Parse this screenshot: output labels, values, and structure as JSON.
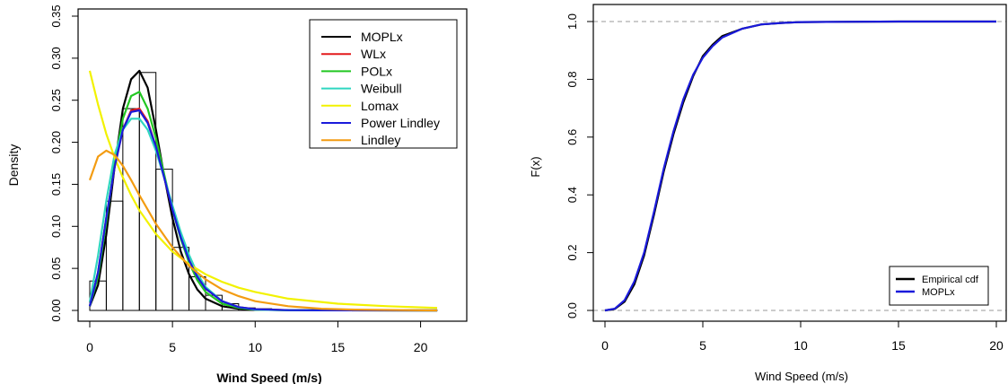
{
  "chart_data": [
    {
      "type": "histogram",
      "xlabel": "Wind Speed (m/s)",
      "ylabel": "Density",
      "xlim": [
        0,
        21
      ],
      "ylim": [
        0,
        0.35
      ],
      "x_ticks": [
        0,
        5,
        10,
        15,
        20
      ],
      "x_tick_labels": [
        "0",
        "5",
        "10",
        "15",
        "20"
      ],
      "y_ticks": [
        0,
        0.05,
        0.1,
        0.15,
        0.2,
        0.25,
        0.3,
        0.35
      ],
      "y_tick_labels": [
        "0.00",
        "0.05",
        "0.10",
        "0.15",
        "0.20",
        "0.25",
        "0.30",
        "0.35"
      ],
      "grid": false,
      "legend_position": "top-right",
      "histogram": {
        "bin_edges": [
          0,
          1,
          2,
          3,
          4,
          5,
          6,
          7,
          8,
          9,
          10,
          11,
          12,
          13,
          14,
          15,
          16,
          17,
          18,
          19,
          20,
          21
        ],
        "densities": [
          0.035,
          0.13,
          0.24,
          0.283,
          0.168,
          0.075,
          0.04,
          0.018,
          0.008,
          0.003,
          0.002,
          0.001,
          0.001,
          0.0005,
          0.0005,
          0.0003,
          0.0002,
          0.0001,
          0.0001,
          0.0001,
          0.0001
        ]
      },
      "series": [
        {
          "name": "MOPLx",
          "color": "#000000",
          "x": [
            0,
            0.5,
            1,
            1.5,
            2,
            2.5,
            3,
            3.5,
            4,
            4.5,
            5,
            5.5,
            6,
            6.5,
            7,
            8,
            9,
            10,
            12,
            15,
            21
          ],
          "y": [
            0.005,
            0.03,
            0.09,
            0.17,
            0.24,
            0.275,
            0.285,
            0.265,
            0.215,
            0.16,
            0.11,
            0.07,
            0.043,
            0.025,
            0.014,
            0.005,
            0.002,
            0.001,
            0.0003,
            0.0001,
            0
          ]
        },
        {
          "name": "WLx",
          "color": "#e31a1c",
          "x": [
            0,
            0.5,
            1,
            1.5,
            2,
            2.5,
            3,
            3.5,
            4,
            4.5,
            5,
            5.5,
            6,
            6.5,
            7,
            8,
            9,
            10,
            12,
            15,
            21
          ],
          "y": [
            0.005,
            0.045,
            0.11,
            0.17,
            0.215,
            0.238,
            0.24,
            0.225,
            0.195,
            0.158,
            0.12,
            0.087,
            0.06,
            0.04,
            0.026,
            0.011,
            0.004,
            0.0015,
            0.0003,
            0.0001,
            0
          ]
        },
        {
          "name": "POLx",
          "color": "#22c722",
          "x": [
            0,
            0.5,
            1,
            1.5,
            2,
            2.5,
            3,
            3.5,
            4,
            4.5,
            5,
            5.5,
            6,
            6.5,
            7,
            8,
            9,
            10,
            12,
            15,
            21
          ],
          "y": [
            0.005,
            0.04,
            0.105,
            0.175,
            0.228,
            0.255,
            0.26,
            0.24,
            0.205,
            0.162,
            0.12,
            0.085,
            0.057,
            0.036,
            0.022,
            0.008,
            0.003,
            0.001,
            0.0002,
            0.0001,
            0
          ]
        },
        {
          "name": "Weibull",
          "color": "#2fd6c0",
          "x": [
            0,
            0.5,
            1,
            1.5,
            2,
            2.5,
            3,
            3.5,
            4,
            4.5,
            5,
            5.5,
            6,
            6.5,
            7,
            8,
            9,
            10,
            12,
            15,
            21
          ],
          "y": [
            0.01,
            0.065,
            0.13,
            0.185,
            0.215,
            0.228,
            0.228,
            0.215,
            0.19,
            0.158,
            0.125,
            0.093,
            0.066,
            0.044,
            0.028,
            0.011,
            0.004,
            0.001,
            0.0002,
            0.0001,
            0
          ]
        },
        {
          "name": "Lomax",
          "color": "#f2f200",
          "x": [
            0,
            0.5,
            1,
            1.5,
            2,
            2.5,
            3,
            4,
            5,
            6,
            7,
            8,
            9,
            10,
            12,
            15,
            18,
            21
          ],
          "y": [
            0.285,
            0.245,
            0.21,
            0.182,
            0.158,
            0.137,
            0.119,
            0.091,
            0.07,
            0.055,
            0.043,
            0.034,
            0.027,
            0.022,
            0.014,
            0.008,
            0.005,
            0.003
          ]
        },
        {
          "name": "Power Lindley",
          "color": "#1a1adb",
          "x": [
            0,
            0.5,
            1,
            1.5,
            2,
            2.5,
            3,
            3.5,
            4,
            4.5,
            5,
            5.5,
            6,
            6.5,
            7,
            8,
            9,
            10,
            12,
            15,
            21
          ],
          "y": [
            0.005,
            0.045,
            0.11,
            0.17,
            0.215,
            0.236,
            0.238,
            0.223,
            0.195,
            0.158,
            0.12,
            0.087,
            0.06,
            0.04,
            0.026,
            0.011,
            0.004,
            0.0015,
            0.0003,
            0.0001,
            0
          ]
        },
        {
          "name": "Lindley",
          "color": "#f39c12",
          "x": [
            0,
            0.5,
            1,
            1.5,
            2,
            2.5,
            3,
            4,
            5,
            6,
            7,
            8,
            9,
            10,
            12,
            14,
            16,
            21
          ],
          "y": [
            0.155,
            0.183,
            0.19,
            0.185,
            0.172,
            0.155,
            0.137,
            0.103,
            0.075,
            0.053,
            0.037,
            0.025,
            0.017,
            0.011,
            0.005,
            0.002,
            0.001,
            0
          ]
        }
      ]
    },
    {
      "type": "line",
      "xlabel": "Wind Speed (m/s)",
      "ylabel": "F(x)",
      "xlim": [
        0,
        20
      ],
      "ylim": [
        0,
        1
      ],
      "x_ticks": [
        0,
        5,
        10,
        15,
        20
      ],
      "x_tick_labels": [
        "0",
        "5",
        "10",
        "15",
        "20"
      ],
      "y_ticks": [
        0,
        0.2,
        0.4,
        0.6,
        0.8,
        1.0
      ],
      "y_tick_labels": [
        "0.0",
        "0.2",
        "0.4",
        "0.6",
        "0.8",
        "1.0"
      ],
      "reference_lines": [
        0,
        1
      ],
      "legend_position": "bottom-right",
      "series": [
        {
          "name": "Empirical cdf",
          "color": "#000000",
          "x": [
            0,
            0.5,
            1,
            1.5,
            2,
            2.5,
            3,
            3.5,
            4,
            4.5,
            5,
            5.5,
            6,
            7,
            8,
            9,
            10,
            12,
            15,
            20
          ],
          "y": [
            0,
            0.005,
            0.03,
            0.09,
            0.19,
            0.33,
            0.48,
            0.61,
            0.72,
            0.81,
            0.88,
            0.92,
            0.95,
            0.975,
            0.99,
            0.995,
            0.998,
            0.999,
            1.0,
            1.0
          ]
        },
        {
          "name": "MOPLx",
          "color": "#1a1adb",
          "x": [
            0,
            0.5,
            1,
            1.5,
            2,
            2.5,
            3,
            3.5,
            4,
            4.5,
            5,
            5.5,
            6,
            7,
            8,
            9,
            10,
            12,
            15,
            20
          ],
          "y": [
            0,
            0.006,
            0.035,
            0.1,
            0.2,
            0.34,
            0.49,
            0.62,
            0.73,
            0.815,
            0.875,
            0.915,
            0.945,
            0.975,
            0.99,
            0.995,
            0.998,
            0.999,
            1.0,
            1.0
          ]
        }
      ]
    }
  ]
}
